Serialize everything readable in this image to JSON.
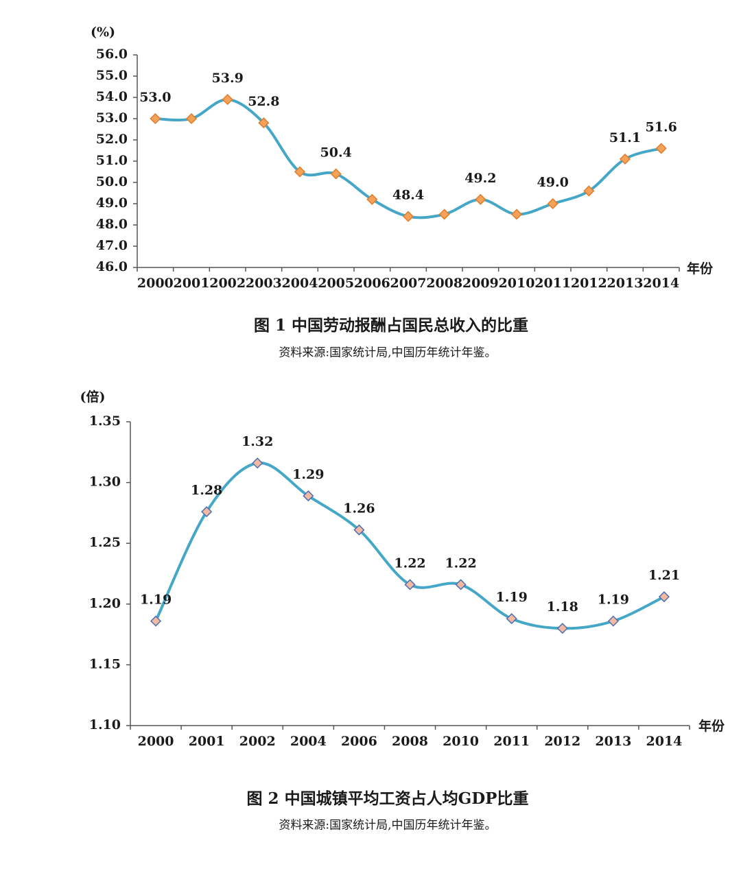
{
  "chart_data": [
    {
      "type": "line",
      "title": "图 1  中国劳动报酬占国民总收入的比重",
      "source": "资料来源:国家统计局,中国历年统计年鉴。",
      "y_label": "(%)",
      "x_label": "年份",
      "categories": [
        "2000",
        "2001",
        "2002",
        "2003",
        "2004",
        "2005",
        "2006",
        "2007",
        "2008",
        "2009",
        "2010",
        "2011",
        "2012",
        "2013",
        "2014"
      ],
      "values": [
        53.0,
        53.0,
        53.9,
        52.8,
        50.5,
        50.4,
        49.2,
        48.4,
        48.5,
        49.2,
        48.5,
        49.0,
        49.6,
        51.1,
        51.6
      ],
      "value_labels": [
        "53.0",
        null,
        "53.9",
        "52.8",
        null,
        "50.4",
        null,
        "48.4",
        null,
        "49.2",
        null,
        "49.0",
        null,
        "51.1",
        "51.6"
      ],
      "color": "#45a7c7",
      "marker_color": "#f4a15a",
      "marker_edge": "#e07b2a",
      "ylim": [
        46,
        56
      ],
      "yticks": [
        {
          "value": 46,
          "label": "46.0"
        },
        {
          "value": 47,
          "label": "47.0"
        },
        {
          "value": 48,
          "label": "48.0"
        },
        {
          "value": 49,
          "label": "49.0"
        },
        {
          "value": 50,
          "label": "50.0"
        },
        {
          "value": 51,
          "label": "51.0"
        },
        {
          "value": 52,
          "label": "52.0"
        },
        {
          "value": 53,
          "label": "53.0"
        },
        {
          "value": 54,
          "label": "54.0"
        },
        {
          "value": 55,
          "label": "55.0"
        },
        {
          "value": 56,
          "label": "56.0"
        }
      ],
      "grid": false
    },
    {
      "type": "line",
      "title": "图 2  中国城镇平均工资占人均GDP比重",
      "source": "资料来源:国家统计局,中国历年统计年鉴。",
      "y_label": "(倍)",
      "x_label": "年份",
      "categories": [
        "2000",
        "2001",
        "2002",
        "2004",
        "2006",
        "2008",
        "2010",
        "2011",
        "2012",
        "2013",
        "2014"
      ],
      "values": [
        1.186,
        1.276,
        1.316,
        1.289,
        1.261,
        1.216,
        1.216,
        1.188,
        1.18,
        1.186,
        1.206
      ],
      "value_labels": [
        "1.19",
        "1.28",
        "1.32",
        "1.29",
        "1.26",
        "1.22",
        "1.22",
        "1.19",
        "1.18",
        "1.19",
        "1.21"
      ],
      "color": "#45a7c7",
      "marker_color": "#f2b8a0",
      "marker_edge": "#4a6fb5",
      "ylim": [
        1.1,
        1.35
      ],
      "yticks": [
        {
          "value": 1.1,
          "label": "1.10"
        },
        1.15,
        {
          "value": 1.2,
          "label": "1.20"
        },
        1.25,
        {
          "value": 1.3,
          "label": "1.30"
        },
        1.35
      ],
      "grid": false
    }
  ]
}
